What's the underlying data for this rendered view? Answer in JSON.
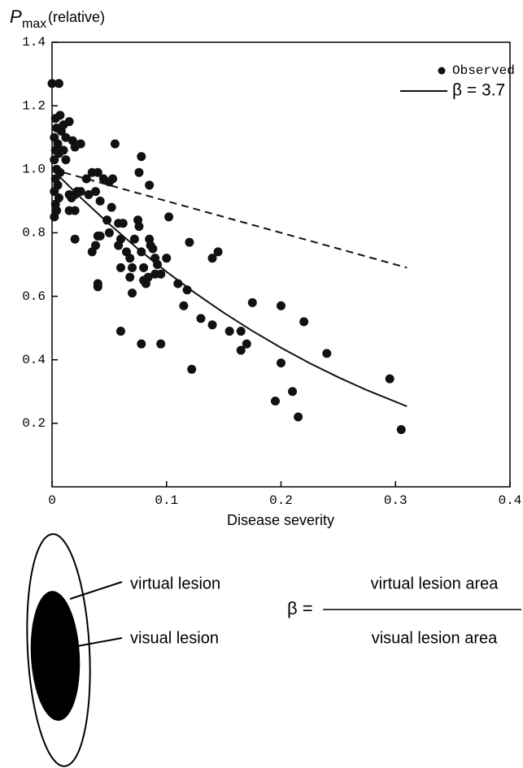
{
  "chart_data": {
    "type": "scatter",
    "y_label": {
      "symbol": "P",
      "subscript": "max",
      "suffix": "(relative)"
    },
    "x_label": "Disease severity",
    "xlim": [
      0,
      0.4
    ],
    "xticks": [
      0,
      0.1,
      0.2,
      0.3,
      0.4
    ],
    "ylim": [
      0,
      1.4
    ],
    "yticks": [
      0.2,
      0.4,
      0.6,
      0.8,
      {
        "value": 1,
        "label": "1.0"
      },
      1.2,
      1.4
    ],
    "legend": "upper right",
    "series": [
      {
        "name": "Observed",
        "kind": "scatter",
        "color": "#111111",
        "x": [
          0.0,
          0.006,
          0.003,
          0.007,
          0.004,
          0.008,
          0.002,
          0.005,
          0.003,
          0.006,
          0.002,
          0.004,
          0.007,
          0.003,
          0.005,
          0.002,
          0.006,
          0.003,
          0.004,
          0.002,
          0.01,
          0.012,
          0.01,
          0.012,
          0.015,
          0.018,
          0.02,
          0.025,
          0.015,
          0.017,
          0.02,
          0.022,
          0.025,
          0.015,
          0.02,
          0.02,
          0.03,
          0.032,
          0.035,
          0.038,
          0.04,
          0.042,
          0.035,
          0.038,
          0.04,
          0.042,
          0.04,
          0.04,
          0.045,
          0.05,
          0.053,
          0.048,
          0.05,
          0.055,
          0.052,
          0.058,
          0.06,
          0.062,
          0.058,
          0.06,
          0.065,
          0.068,
          0.07,
          0.068,
          0.07,
          0.072,
          0.075,
          0.076,
          0.078,
          0.076,
          0.078,
          0.08,
          0.08,
          0.082,
          0.084,
          0.085,
          0.086,
          0.088,
          0.09,
          0.092,
          0.09,
          0.095,
          0.085,
          0.06,
          0.078,
          0.095,
          0.1,
          0.102,
          0.11,
          0.118,
          0.115,
          0.12,
          0.122,
          0.13,
          0.14,
          0.145,
          0.14,
          0.155,
          0.165,
          0.165,
          0.17,
          0.175,
          0.195,
          0.2,
          0.2,
          0.21,
          0.215,
          0.22,
          0.24,
          0.295,
          0.305
        ],
        "values": [
          1.27,
          1.27,
          1.16,
          1.17,
          1.13,
          1.12,
          1.1,
          1.08,
          1.06,
          1.05,
          1.03,
          1.0,
          0.99,
          0.97,
          0.95,
          0.93,
          0.91,
          0.89,
          0.87,
          0.85,
          1.14,
          1.1,
          1.06,
          1.03,
          1.15,
          1.09,
          1.07,
          1.08,
          0.92,
          0.91,
          0.92,
          0.93,
          0.93,
          0.87,
          0.87,
          0.78,
          0.97,
          0.92,
          0.99,
          0.93,
          0.99,
          0.9,
          0.74,
          0.76,
          0.79,
          0.79,
          0.64,
          0.63,
          0.97,
          0.96,
          0.97,
          0.84,
          0.8,
          1.08,
          0.88,
          0.83,
          0.78,
          0.83,
          0.76,
          0.69,
          0.74,
          0.72,
          0.69,
          0.66,
          0.61,
          0.78,
          0.84,
          0.82,
          1.04,
          0.99,
          0.74,
          0.69,
          0.65,
          0.64,
          0.66,
          0.78,
          0.76,
          0.75,
          0.72,
          0.7,
          0.67,
          0.67,
          0.95,
          0.49,
          0.45,
          0.45,
          0.72,
          0.85,
          0.64,
          0.62,
          0.57,
          0.77,
          0.37,
          0.53,
          0.72,
          0.74,
          0.51,
          0.49,
          0.49,
          0.43,
          0.45,
          0.58,
          0.27,
          0.57,
          0.39,
          0.3,
          0.22,
          0.52,
          0.42,
          0.34,
          0.18
        ]
      },
      {
        "name": "β = 3.7",
        "kind": "line",
        "dash": false,
        "color": "#111111",
        "x": [
          0,
          0.025,
          0.05,
          0.075,
          0.1,
          0.125,
          0.15,
          0.175,
          0.2,
          0.225,
          0.25,
          0.275,
          0.31
        ],
        "values": [
          1,
          0.9106,
          0.8271,
          0.7494,
          0.6772,
          0.6101,
          0.5481,
          0.4908,
          0.438,
          0.3894,
          0.3449,
          0.3043,
          0.2534
        ]
      },
      {
        "kind": "line",
        "dash": true,
        "color": "#111111",
        "x": [
          0,
          0.31
        ],
        "values": [
          1,
          0.69
        ]
      }
    ]
  },
  "diagram": {
    "outer_label": "virtual lesion",
    "inner_label": "visual lesion",
    "formula": {
      "symbol": "β =",
      "numerator": "virtual lesion area",
      "denominator": "visual lesion area"
    }
  }
}
